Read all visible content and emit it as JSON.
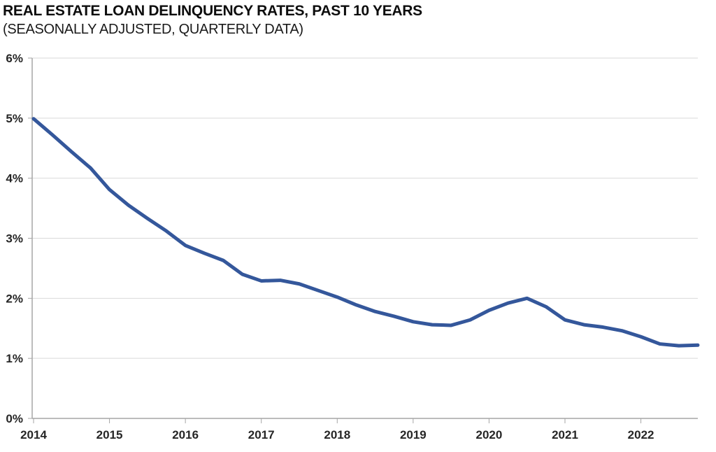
{
  "chart_data": {
    "type": "line",
    "title": "REAL ESTATE LOAN DELINQUENCY RATES, PAST 10 YEARS",
    "subtitle": "(SEASONALLY ADJUSTED, QUARTERLY DATA)",
    "x": [
      "2014 Q1",
      "2014 Q2",
      "2014 Q3",
      "2014 Q4",
      "2015 Q1",
      "2015 Q2",
      "2015 Q3",
      "2015 Q4",
      "2016 Q1",
      "2016 Q2",
      "2016 Q3",
      "2016 Q4",
      "2017 Q1",
      "2017 Q2",
      "2017 Q3",
      "2017 Q4",
      "2018 Q1",
      "2018 Q2",
      "2018 Q3",
      "2018 Q4",
      "2019 Q1",
      "2019 Q2",
      "2019 Q3",
      "2019 Q4",
      "2020 Q1",
      "2020 Q2",
      "2020 Q3",
      "2020 Q4",
      "2021 Q1",
      "2021 Q2",
      "2021 Q3",
      "2021 Q4",
      "2022 Q1",
      "2022 Q2",
      "2022 Q3",
      "2022 Q4"
    ],
    "series": [
      {
        "name": "Real estate loan delinquency rate",
        "values": [
          4.99,
          4.72,
          4.44,
          4.17,
          3.81,
          3.55,
          3.33,
          3.12,
          2.88,
          2.75,
          2.63,
          2.4,
          2.29,
          2.3,
          2.24,
          2.13,
          2.02,
          1.89,
          1.78,
          1.7,
          1.61,
          1.56,
          1.55,
          1.64,
          1.8,
          1.92,
          2.0,
          1.86,
          1.64,
          1.56,
          1.52,
          1.46,
          1.36,
          1.24,
          1.21,
          1.22
        ]
      }
    ],
    "xlabel": "",
    "ylabel": "",
    "ylim": [
      0,
      6
    ],
    "y_tick_values": [
      0,
      1,
      2,
      3,
      4,
      5,
      6
    ],
    "y_tick_labels": [
      "0%",
      "1%",
      "2%",
      "3%",
      "4%",
      "5%",
      "6%"
    ],
    "x_tick_indices": [
      0,
      4,
      8,
      12,
      16,
      20,
      24,
      28,
      32
    ],
    "x_tick_labels": [
      "2014",
      "2015",
      "2016",
      "2017",
      "2018",
      "2019",
      "2020",
      "2021",
      "2022"
    ],
    "grid": "horizontal",
    "legend": "none",
    "line_color": "#34579B",
    "grid_color": "#D9D9D9",
    "axis_color": "#A6A6A6",
    "text_color": "#262626"
  }
}
